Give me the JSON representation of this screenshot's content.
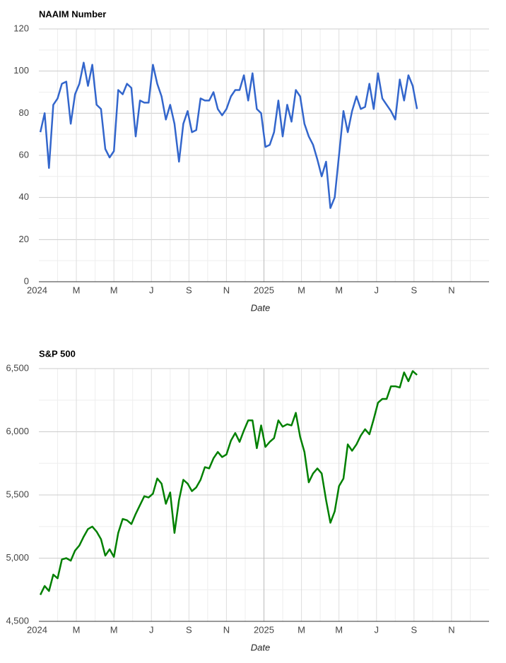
{
  "chart_data": [
    {
      "type": "line",
      "title": "NAAIM Number",
      "xlabel": "Date",
      "x": [
        0.08,
        0.31,
        0.54,
        0.77,
        1.0,
        1.23,
        1.46,
        1.7,
        1.93,
        2.16,
        2.39,
        2.62,
        2.85,
        3.08,
        3.31,
        3.54,
        3.77,
        4.0,
        4.23,
        4.47,
        4.7,
        4.93,
        5.16,
        5.39,
        5.62,
        5.85,
        6.08,
        6.31,
        6.54,
        6.77,
        7.0,
        7.23,
        7.47,
        7.7,
        7.93,
        8.16,
        8.39,
        8.62,
        8.85,
        9.08,
        9.31,
        9.54,
        9.77,
        10.0,
        10.24,
        10.47,
        10.7,
        10.93,
        11.16,
        11.39,
        11.62,
        11.85,
        12.08,
        12.31,
        12.54,
        12.77,
        13.0,
        13.24,
        13.47,
        13.7,
        13.93,
        14.16,
        14.39,
        14.62,
        14.85,
        15.08,
        15.31,
        15.54,
        15.77,
        16.0,
        16.24,
        16.47,
        16.7,
        16.93,
        17.16,
        17.39,
        17.62,
        17.85,
        18.08,
        18.31,
        18.54,
        18.77,
        19.0,
        19.24,
        19.47,
        19.7,
        19.93,
        20.16
      ],
      "series": [
        {
          "name": "NAAIM Number",
          "color": "#3366cc",
          "values": [
            71,
            80,
            54,
            84,
            87,
            94,
            95,
            75,
            89,
            94,
            104,
            93,
            103,
            84,
            82,
            63,
            59,
            62,
            91,
            89,
            94,
            92,
            69,
            86,
            85,
            85,
            103,
            94,
            88,
            77,
            84,
            75,
            57,
            75,
            81,
            71,
            72,
            87,
            86,
            86,
            90,
            82,
            79,
            82,
            88,
            91,
            91,
            98,
            86,
            99,
            82,
            80,
            64,
            65,
            71,
            86,
            69,
            84,
            76,
            91,
            88,
            75,
            69,
            65,
            58,
            50,
            57,
            35,
            40,
            60,
            81,
            71,
            81,
            88,
            82,
            83,
            94,
            82,
            99,
            87,
            84,
            81,
            77,
            96,
            86,
            98,
            93,
            82
          ]
        }
      ],
      "xlim": [
        0,
        24
      ],
      "xticks": [
        {
          "value": 0,
          "label": "2024"
        },
        {
          "value": 2,
          "label": "M"
        },
        {
          "value": 4,
          "label": "M"
        },
        {
          "value": 6,
          "label": "J"
        },
        {
          "value": 8,
          "label": "S"
        },
        {
          "value": 10,
          "label": "N"
        },
        {
          "value": 12,
          "label": "2025"
        },
        {
          "value": 14,
          "label": "M"
        },
        {
          "value": 16,
          "label": "M"
        },
        {
          "value": 18,
          "label": "J"
        },
        {
          "value": 20,
          "label": "S"
        },
        {
          "value": 22,
          "label": "N"
        }
      ],
      "ylim": [
        0,
        120
      ],
      "yticks": [
        0,
        20,
        40,
        60,
        80,
        100,
        120
      ],
      "grid": true
    },
    {
      "type": "line",
      "title": "S&P 500",
      "xlabel": "Date",
      "x": [
        0.08,
        0.31,
        0.54,
        0.77,
        1.0,
        1.23,
        1.46,
        1.7,
        1.93,
        2.16,
        2.39,
        2.62,
        2.85,
        3.08,
        3.31,
        3.54,
        3.77,
        4.0,
        4.23,
        4.47,
        4.7,
        4.93,
        5.16,
        5.39,
        5.62,
        5.85,
        6.08,
        6.31,
        6.54,
        6.77,
        7.0,
        7.23,
        7.47,
        7.7,
        7.93,
        8.16,
        8.39,
        8.62,
        8.85,
        9.08,
        9.31,
        9.54,
        9.77,
        10.0,
        10.24,
        10.47,
        10.7,
        10.93,
        11.16,
        11.39,
        11.62,
        11.85,
        12.08,
        12.31,
        12.54,
        12.77,
        13.0,
        13.24,
        13.47,
        13.7,
        13.93,
        14.16,
        14.39,
        14.62,
        14.85,
        15.08,
        15.31,
        15.54,
        15.77,
        16.0,
        16.24,
        16.47,
        16.7,
        16.93,
        17.16,
        17.39,
        17.62,
        17.85,
        18.08,
        18.31,
        18.54,
        18.77,
        19.0,
        19.24,
        19.47,
        19.7,
        19.93,
        20.16
      ],
      "series": [
        {
          "name": "S&P 500",
          "color": "#008000",
          "values": [
            4710,
            4780,
            4740,
            4870,
            4840,
            4990,
            5000,
            4980,
            5060,
            5100,
            5170,
            5230,
            5250,
            5210,
            5150,
            5020,
            5070,
            5010,
            5200,
            5310,
            5300,
            5270,
            5350,
            5420,
            5490,
            5480,
            5510,
            5630,
            5590,
            5430,
            5520,
            5200,
            5460,
            5620,
            5590,
            5530,
            5560,
            5620,
            5720,
            5710,
            5790,
            5840,
            5800,
            5820,
            5930,
            5990,
            5920,
            6010,
            6090,
            6090,
            5870,
            6050,
            5880,
            5920,
            5950,
            6090,
            6040,
            6060,
            6050,
            6150,
            5960,
            5840,
            5600,
            5670,
            5710,
            5670,
            5460,
            5280,
            5370,
            5570,
            5630,
            5900,
            5850,
            5900,
            5970,
            6020,
            5980,
            6100,
            6230,
            6260,
            6260,
            6360,
            6360,
            6350,
            6470,
            6400,
            6480,
            6450
          ]
        }
      ],
      "xlim": [
        0,
        24
      ],
      "xticks": [
        {
          "value": 0,
          "label": "2024"
        },
        {
          "value": 2,
          "label": "M"
        },
        {
          "value": 4,
          "label": "M"
        },
        {
          "value": 6,
          "label": "J"
        },
        {
          "value": 8,
          "label": "S"
        },
        {
          "value": 10,
          "label": "N"
        },
        {
          "value": 12,
          "label": "2025"
        },
        {
          "value": 14,
          "label": "M"
        },
        {
          "value": 16,
          "label": "M"
        },
        {
          "value": 18,
          "label": "J"
        },
        {
          "value": 20,
          "label": "S"
        },
        {
          "value": 22,
          "label": "N"
        }
      ],
      "ylim": [
        4500,
        6500
      ],
      "yticks": [
        {
          "value": 4500,
          "label": "4,500"
        },
        {
          "value": 5000,
          "label": "5,000"
        },
        {
          "value": 5500,
          "label": "5,500"
        },
        {
          "value": 6000,
          "label": "6,000"
        },
        {
          "value": 6500,
          "label": "6,500"
        }
      ],
      "grid": true
    }
  ]
}
